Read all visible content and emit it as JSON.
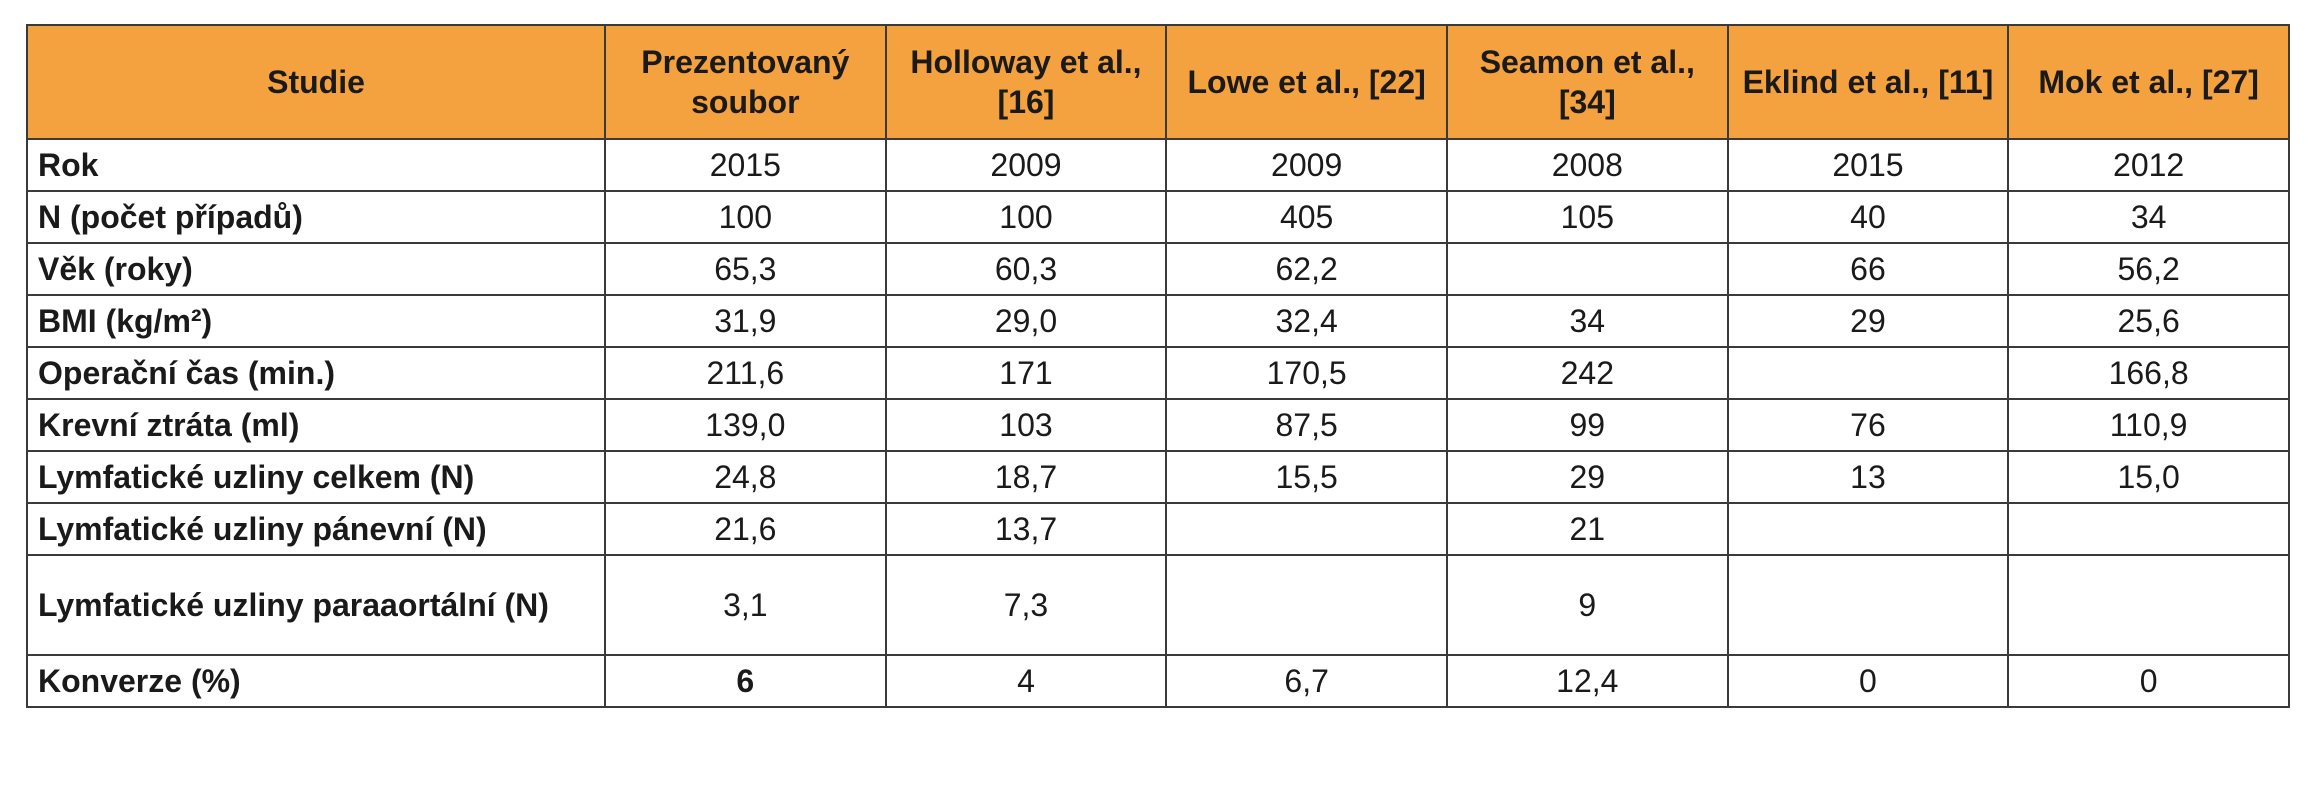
{
  "table": {
    "columns": [
      "Studie",
      "Prezentovaný soubor",
      "Holloway et al., [16]",
      "Lowe et al., [22]",
      "Seamon et al., [34]",
      "Eklind et al., [11]",
      "Mok et al., [27]"
    ],
    "rows": [
      {
        "label": "Rok",
        "values": [
          "2015",
          "2009",
          "2009",
          "2008",
          "2015",
          "2012"
        ]
      },
      {
        "label": "N (počet případů)",
        "values": [
          "100",
          "100",
          "405",
          "105",
          "40",
          "34"
        ]
      },
      {
        "label": "Věk (roky)",
        "values": [
          "65,3",
          "60,3",
          "62,2",
          "",
          "66",
          "56,2"
        ]
      },
      {
        "label": "BMI (kg/m²)",
        "values": [
          "31,9",
          "29,0",
          "32,4",
          "34",
          "29",
          "25,6"
        ]
      },
      {
        "label": "Operační čas (min.)",
        "values": [
          "211,6",
          "171",
          "170,5",
          "242",
          "",
          "166,8"
        ]
      },
      {
        "label": "Krevní ztráta (ml)",
        "values": [
          "139,0",
          "103",
          "87,5",
          "99",
          "76",
          "110,9"
        ]
      },
      {
        "label": "Lymfatické uzliny celkem (N)",
        "values": [
          "24,8",
          "18,7",
          "15,5",
          "29",
          "13",
          "15,0"
        ]
      },
      {
        "label": "Lymfatické uzliny pánevní (N)",
        "values": [
          "21,6",
          "13,7",
          "",
          "21",
          "",
          ""
        ]
      },
      {
        "label": "Lymfatické uzliny paraaortální (N)",
        "values": [
          "3,1",
          "7,3",
          "",
          "9",
          "",
          ""
        ]
      },
      {
        "label": "Konverze (%)",
        "values": [
          "6",
          "4",
          "6,7",
          "12,4",
          "0",
          "0"
        ]
      }
    ]
  }
}
